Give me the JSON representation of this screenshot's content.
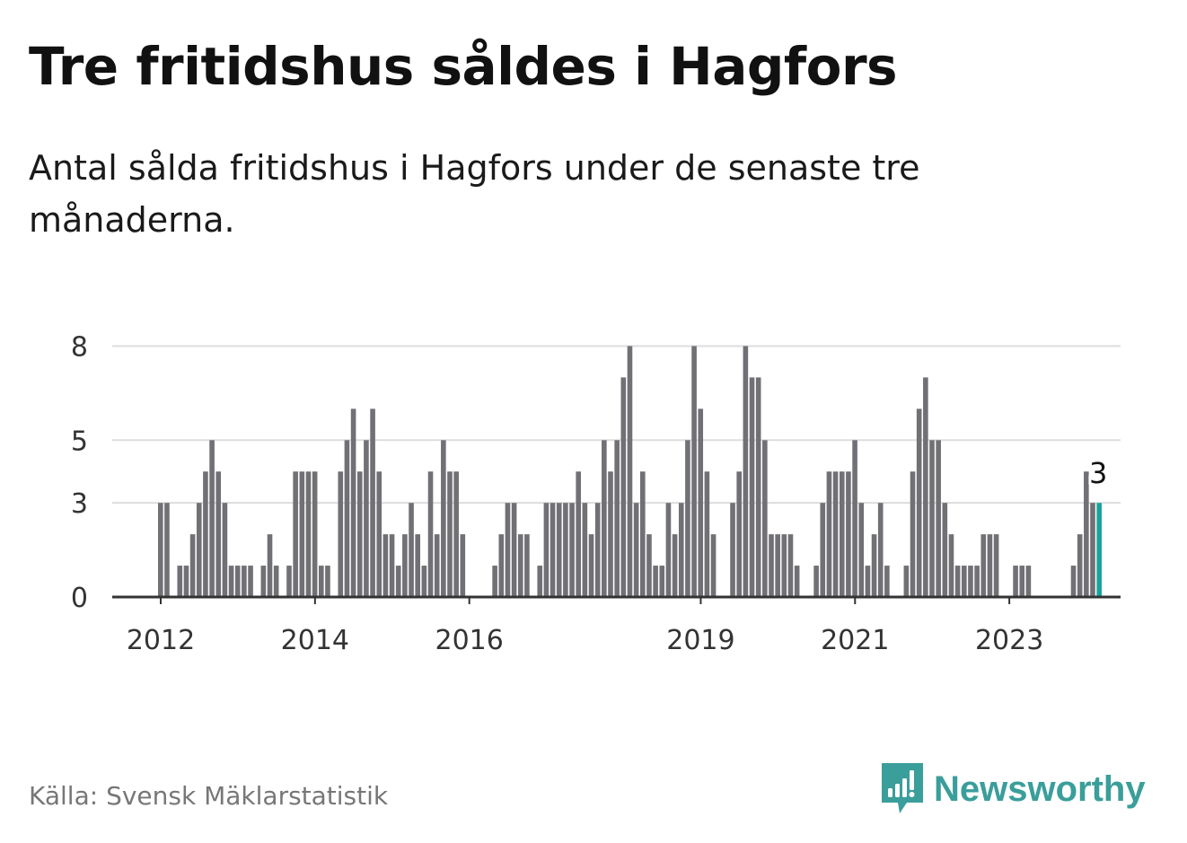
{
  "title": "Tre fritidshus såldes i Hagfors",
  "subtitle": "Antal sålda fritidshus i Hagfors under de senaste tre månaderna.",
  "source": "Källa: Svensk Mäklarstatistik",
  "brand": {
    "name": "Newsworthy",
    "icon": "newsworthy-logo-icon",
    "color": "#3a9e9a"
  },
  "colors": {
    "bar": "#707075",
    "highlight": "#17a39b",
    "grid": "#dddddd",
    "axis": "#333333"
  },
  "chart_data": {
    "type": "bar",
    "ylim": [
      0,
      8.5
    ],
    "yticks": [
      0,
      3,
      5,
      8
    ],
    "xticks": [
      "2012",
      "2014",
      "2016",
      "2019",
      "2021",
      "2023"
    ],
    "grid": true,
    "annotation": {
      "label": "3"
    },
    "series": [
      {
        "values": [
          3,
          3,
          0,
          1,
          1,
          2,
          3,
          4,
          5,
          4,
          3,
          1,
          1,
          1,
          1,
          0,
          1,
          2,
          1,
          0,
          1,
          4,
          4,
          4,
          4,
          1,
          1,
          0,
          4,
          5,
          6,
          4,
          5,
          6,
          4,
          2,
          2,
          1,
          2,
          3,
          2,
          1,
          4,
          2,
          5,
          4,
          4,
          2,
          0,
          0,
          0,
          0,
          1,
          2,
          3,
          3,
          2,
          2,
          0,
          1,
          3,
          3,
          3,
          3,
          3,
          4,
          3,
          2,
          3,
          5,
          4,
          5,
          7,
          8,
          3,
          4,
          2,
          1,
          1,
          3,
          2,
          3,
          5,
          8,
          6,
          4,
          2,
          0,
          0,
          3,
          4,
          8,
          7,
          7,
          5,
          2,
          2,
          2,
          2,
          1,
          0,
          0,
          1,
          3,
          4,
          4,
          4,
          4,
          5,
          3,
          1,
          2,
          3,
          1,
          0,
          0,
          1,
          4,
          6,
          7,
          5,
          5,
          3,
          2,
          1,
          1,
          1,
          1,
          2,
          2,
          2,
          0,
          0,
          1,
          1,
          1,
          0,
          0,
          0,
          0,
          0,
          0,
          1,
          2,
          4,
          3,
          3
        ]
      }
    ]
  }
}
